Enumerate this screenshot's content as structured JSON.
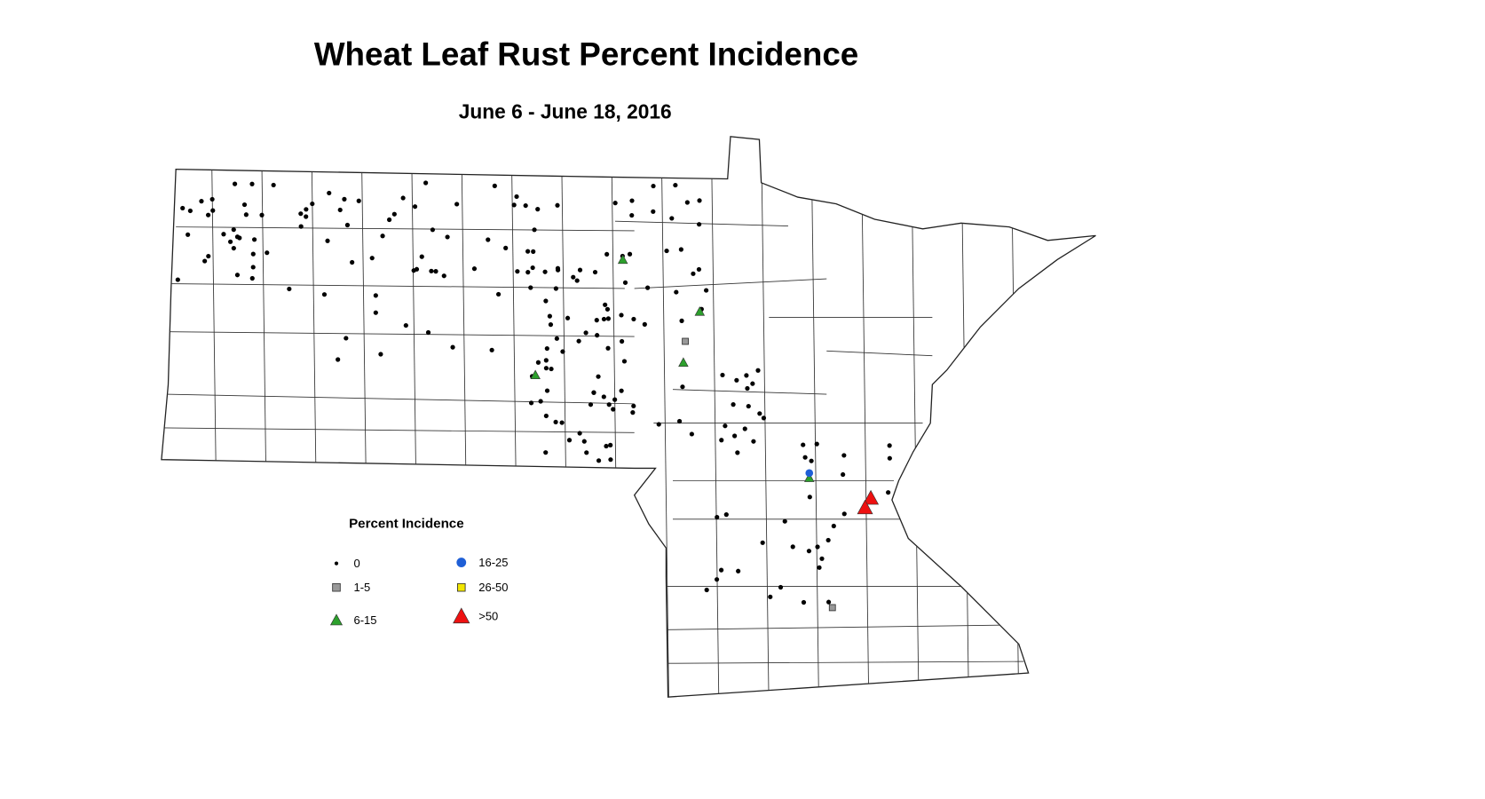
{
  "title": "Wheat Leaf Rust Percent Incidence",
  "subtitle": "June 6 - June 18, 2016",
  "legend": {
    "title": "Percent Incidence",
    "items": [
      {
        "label": "0",
        "symbol": "dot",
        "color": "#000000"
      },
      {
        "label": "1-5",
        "symbol": "square",
        "color": "#999999"
      },
      {
        "label": "6-15",
        "symbol": "triangle",
        "color": "#2ca02c"
      },
      {
        "label": "16-25",
        "symbol": "circle",
        "color": "#1f5fd6"
      },
      {
        "label": "26-50",
        "symbol": "square",
        "color": "#f2e600"
      },
      {
        "label": ">50",
        "symbol": "triangle",
        "color": "#ee1111"
      }
    ]
  }
}
